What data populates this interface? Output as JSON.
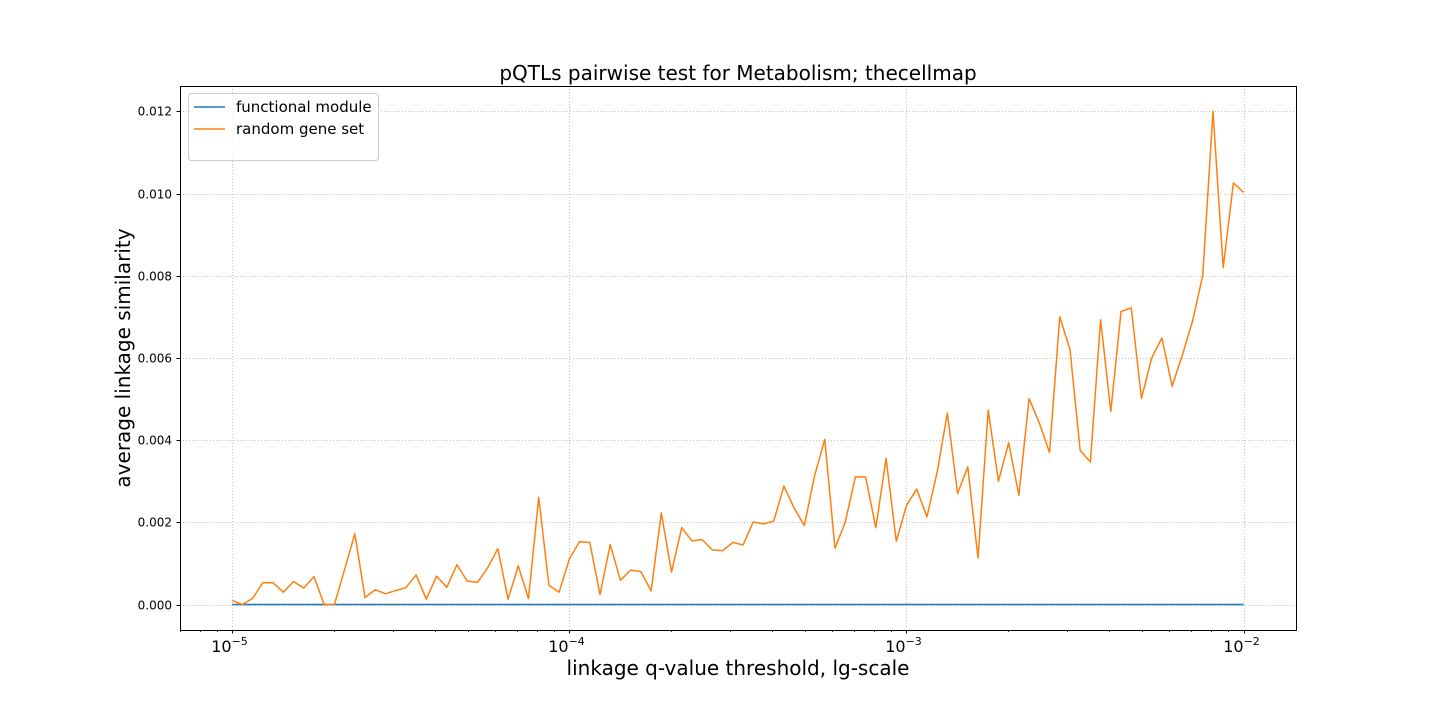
{
  "chart_data": {
    "type": "line",
    "title": "pQTLs pairwise test for Metabolism; thecellmap",
    "xlabel": "linkage q-value threshold, lg-scale",
    "ylabel": "average linkage similarity",
    "x_scale": "log",
    "xlim": [
      7e-06,
      0.0143
    ],
    "ylim": [
      -0.00062,
      0.01262
    ],
    "x_ticks": [
      {
        "value": 1e-05,
        "base": "10",
        "exp": "−5"
      },
      {
        "value": 0.0001,
        "base": "10",
        "exp": "−4"
      },
      {
        "value": 0.001,
        "base": "10",
        "exp": "−3"
      },
      {
        "value": 0.01,
        "base": "10",
        "exp": "−2"
      }
    ],
    "y_ticks": [
      {
        "value": 0.0,
        "label": "0.000"
      },
      {
        "value": 0.002,
        "label": "0.002"
      },
      {
        "value": 0.004,
        "label": "0.004"
      },
      {
        "value": 0.006,
        "label": "0.006"
      },
      {
        "value": 0.008,
        "label": "0.008"
      },
      {
        "value": 0.01,
        "label": "0.010"
      },
      {
        "value": 0.012,
        "label": "0.012"
      }
    ],
    "grid": true,
    "grid_style": "dotted",
    "legend_position": "top-left",
    "x_range": [
      1e-05,
      0.01
    ],
    "n_points": 100,
    "series": [
      {
        "name": "functional module",
        "color": "#1f77b4",
        "values": [
          0,
          0,
          0,
          0,
          0,
          0,
          0,
          0,
          0,
          0,
          0,
          0,
          0,
          0,
          0,
          0,
          0,
          0,
          0,
          0,
          0,
          0,
          0,
          0,
          0,
          0,
          0,
          0,
          0,
          0,
          0,
          0,
          0,
          0,
          0,
          0,
          0,
          0,
          0,
          0,
          0,
          0,
          0,
          0,
          0,
          0,
          0,
          0,
          0,
          0,
          0,
          0,
          0,
          0,
          0,
          0,
          0,
          0,
          0,
          0,
          0,
          0,
          0,
          0,
          0,
          0,
          0,
          0,
          0,
          0,
          0,
          0,
          0,
          0,
          0,
          0,
          0,
          0,
          0,
          0,
          0,
          0,
          0,
          0,
          0,
          0,
          0,
          0,
          0,
          0,
          0,
          0,
          0,
          0,
          0,
          0,
          0,
          0,
          0,
          0
        ]
      },
      {
        "name": "random gene set",
        "color": "#ff7f0e",
        "values": [
          0.0001,
          0.0,
          0.00015,
          0.00053,
          0.00053,
          0.0003,
          0.00056,
          0.0004,
          0.00068,
          0.0,
          0.0,
          0.00085,
          0.00172,
          0.00017,
          0.00036,
          0.00026,
          0.00034,
          0.00041,
          0.00072,
          0.00013,
          0.00069,
          0.00042,
          0.00097,
          0.00057,
          0.00054,
          0.00089,
          0.00136,
          0.00013,
          0.00094,
          0.00014,
          0.00261,
          0.00047,
          0.0003,
          0.00111,
          0.00153,
          0.00151,
          0.00024,
          0.00146,
          0.00059,
          0.00084,
          0.0008,
          0.00033,
          0.00223,
          0.00079,
          0.00187,
          0.00155,
          0.00158,
          0.00133,
          0.00131,
          0.00151,
          0.00145,
          0.00201,
          0.00196,
          0.00203,
          0.00288,
          0.00235,
          0.00192,
          0.00313,
          0.00402,
          0.00137,
          0.002,
          0.00311,
          0.0031,
          0.00187,
          0.00356,
          0.00154,
          0.00241,
          0.00281,
          0.00213,
          0.00322,
          0.00466,
          0.0027,
          0.00335,
          0.00113,
          0.00473,
          0.003,
          0.00394,
          0.00266,
          0.00501,
          0.00442,
          0.0037,
          0.007,
          0.00621,
          0.00375,
          0.00347,
          0.00693,
          0.0047,
          0.00713,
          0.00722,
          0.00502,
          0.006,
          0.00649,
          0.00531,
          0.00607,
          0.0069,
          0.00801,
          0.012,
          0.0082,
          0.01026,
          0.01003
        ]
      }
    ]
  }
}
